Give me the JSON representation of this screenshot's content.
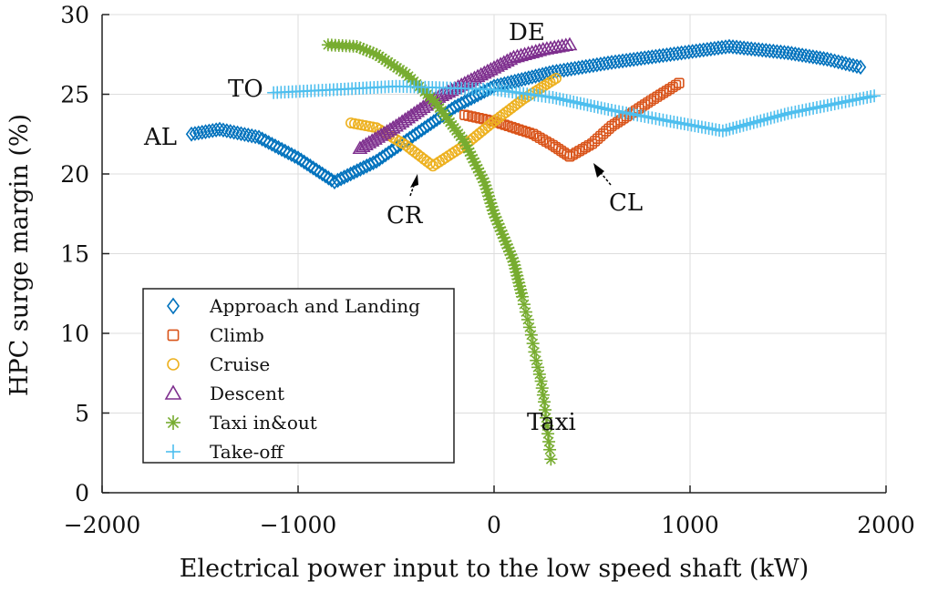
{
  "chart_data": {
    "type": "scatter",
    "title": "",
    "xlabel": "Electrical power input to the low speed shaft (kW)",
    "ylabel": "HPC surge margin (%)",
    "xlim": [
      -2000,
      2000
    ],
    "ylim": [
      0,
      30
    ],
    "xticks": [
      -2000,
      -1000,
      0,
      1000,
      2000
    ],
    "xtick_labels": [
      "−2000",
      "−1000",
      "0",
      "1000",
      "2000"
    ],
    "yticks": [
      0,
      5,
      10,
      15,
      20,
      25,
      30
    ],
    "ytick_labels": [
      "0",
      "5",
      "10",
      "15",
      "20",
      "25",
      "30"
    ],
    "grid": true,
    "legend_placement": "lower-left",
    "series": [
      {
        "name": "Approach and Landing",
        "marker": "diamond",
        "color": "#0072BD",
        "points": [
          [
            -1544,
            22.5
          ],
          [
            -1400,
            22.8
          ],
          [
            -1200,
            22.3
          ],
          [
            -1000,
            21.0
          ],
          [
            -814,
            19.5
          ],
          [
            -600,
            20.8
          ],
          [
            -400,
            22.5
          ],
          [
            -200,
            24.2
          ],
          [
            0,
            25.5
          ],
          [
            300,
            26.4
          ],
          [
            600,
            27.0
          ],
          [
            900,
            27.5
          ],
          [
            1200,
            28.0
          ],
          [
            1500,
            27.6
          ],
          [
            1700,
            27.2
          ],
          [
            1870,
            26.7
          ]
        ]
      },
      {
        "name": "Climb",
        "marker": "square",
        "color": "#D95319",
        "points": [
          [
            -150,
            23.7
          ],
          [
            0,
            23.3
          ],
          [
            200,
            22.5
          ],
          [
            300,
            21.8
          ],
          [
            386,
            21.1
          ],
          [
            500,
            21.9
          ],
          [
            600,
            23.0
          ],
          [
            800,
            24.6
          ],
          [
            944,
            25.7
          ]
        ]
      },
      {
        "name": "Cruise",
        "marker": "circle",
        "color": "#EDB120",
        "points": [
          [
            -730,
            23.2
          ],
          [
            -600,
            22.9
          ],
          [
            -450,
            21.8
          ],
          [
            -312,
            20.5
          ],
          [
            -150,
            21.8
          ],
          [
            0,
            23.3
          ],
          [
            150,
            24.7
          ],
          [
            316,
            26.0
          ]
        ]
      },
      {
        "name": "Descent",
        "marker": "triangle",
        "color": "#7E2F8E",
        "points": [
          [
            -684,
            21.6
          ],
          [
            -500,
            23.0
          ],
          [
            -300,
            24.7
          ],
          [
            -100,
            26.0
          ],
          [
            100,
            27.3
          ],
          [
            250,
            27.8
          ],
          [
            386,
            28.1
          ]
        ]
      },
      {
        "name": "Taxi in&out",
        "marker": "star",
        "color": "#77AC30",
        "points": [
          [
            -847,
            28.1
          ],
          [
            -700,
            28.0
          ],
          [
            -600,
            27.5
          ],
          [
            -450,
            26.3
          ],
          [
            -300,
            24.5
          ],
          [
            -150,
            22.0
          ],
          [
            -50,
            19.5
          ],
          [
            0,
            17.5
          ],
          [
            50,
            16.0
          ],
          [
            100,
            14.5
          ],
          [
            144,
            12.3
          ],
          [
            190,
            9.9
          ],
          [
            215,
            8.3
          ],
          [
            240,
            7.0
          ],
          [
            256,
            5.7
          ],
          [
            284,
            2.7
          ],
          [
            290,
            2.1
          ]
        ]
      },
      {
        "name": "Take-off",
        "marker": "plus",
        "color": "#4DBEEE",
        "points": [
          [
            -1125,
            25.1
          ],
          [
            -800,
            25.3
          ],
          [
            -500,
            25.5
          ],
          [
            0,
            25.3
          ],
          [
            300,
            24.8
          ],
          [
            600,
            24.0
          ],
          [
            900,
            23.3
          ],
          [
            1167,
            22.7
          ],
          [
            1500,
            23.8
          ],
          [
            1940,
            24.9
          ]
        ]
      }
    ],
    "annotations": [
      {
        "text": "AL"
      },
      {
        "text": "TO"
      },
      {
        "text": "DE"
      },
      {
        "text": "CR",
        "arrow": true
      },
      {
        "text": "CL",
        "arrow": true
      },
      {
        "text": "Taxi"
      }
    ]
  }
}
